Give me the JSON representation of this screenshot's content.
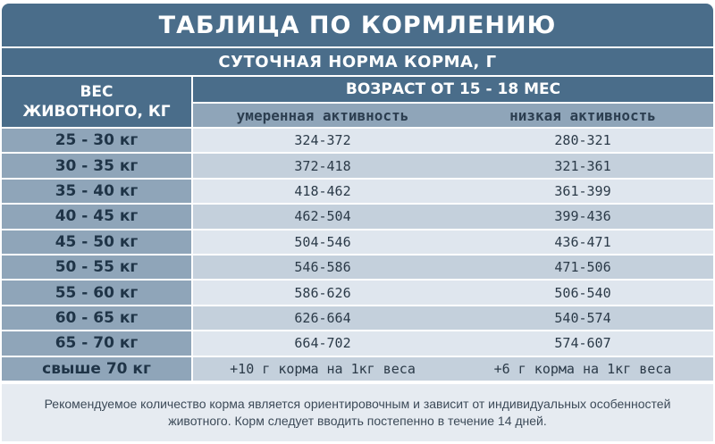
{
  "title": "ТАБЛИЦА ПО КОРМЛЕНИЮ",
  "subtitle": "СУТОЧНАЯ НОРМА КОРМА, Г",
  "weight_header": {
    "line1": "ВЕС",
    "line2": "ЖИВОТНОГО, КГ"
  },
  "age_header": "ВОЗРАСТ ОТ 15 - 18 МЕС",
  "columns": [
    "умеренная активность",
    "низкая активность"
  ],
  "rows": [
    {
      "weight": "25 - 30 кг",
      "moderate": "324-372",
      "low": "280-321"
    },
    {
      "weight": "30 - 35 кг",
      "moderate": "372-418",
      "low": "321-361"
    },
    {
      "weight": "35 - 40 кг",
      "moderate": "418-462",
      "low": "361-399"
    },
    {
      "weight": "40 - 45 кг",
      "moderate": "462-504",
      "low": "399-436"
    },
    {
      "weight": "45 - 50 кг",
      "moderate": "504-546",
      "low": "436-471"
    },
    {
      "weight": "50 - 55 кг",
      "moderate": "546-586",
      "low": "471-506"
    },
    {
      "weight": "55 - 60 кг",
      "moderate": "586-626",
      "low": "506-540"
    },
    {
      "weight": "60 - 65 кг",
      "moderate": "626-664",
      "low": "540-574"
    },
    {
      "weight": "65 - 70 кг",
      "moderate": "664-702",
      "low": "574-607"
    },
    {
      "weight": "свыше 70 кг",
      "moderate": "+10 г корма на 1кг веса",
      "low": "+6 г корма на 1кг веса"
    }
  ],
  "note": "Рекомендуемое количество корма является ориентировочным и зависит от индивидуальных особенностей животного. Корм следует вводить постепенно в течение 14 дней."
}
